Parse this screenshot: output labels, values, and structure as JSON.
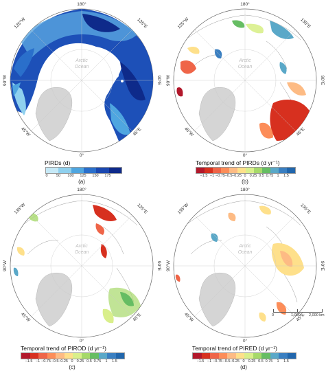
{
  "map_labels": {
    "lon_180": "180°",
    "lon_135w": "135°W",
    "lon_135e": "135°E",
    "lon_90w": "90°W",
    "lon_90e": "90°E",
    "lon_45w": "45°W",
    "lon_45e": "45°E",
    "lon_0": "0°",
    "ocean_line1": "Arctic",
    "ocean_line2": "Ocean"
  },
  "panels": [
    {
      "id": "a",
      "label": "(a)",
      "legend_title": "PIRDs (d)",
      "ticks": [
        "0",
        "50",
        "100",
        "125",
        "150",
        "175"
      ],
      "colors": [
        "#c6e9f7",
        "#8fd0ee",
        "#4fa6e0",
        "#2a6fcb",
        "#1a48b0",
        "#0e2a8a"
      ]
    },
    {
      "id": "b",
      "label": "(b)",
      "legend_title": "Temporal trend of PIRDs (d yr⁻¹)",
      "ticks": [
        "−1.5",
        "−1",
        "−0.75",
        "−0.5",
        "−0.25",
        "0",
        "0.25",
        "0.5",
        "0.75",
        "1",
        "1.5"
      ],
      "colors": [
        "#b2182b",
        "#d7301f",
        "#ef6548",
        "#fc8d59",
        "#fdbb84",
        "#fee08b",
        "#d9ef8b",
        "#a6d96a",
        "#66bd63",
        "#5aa8c8",
        "#3a7fc1",
        "#2166ac"
      ]
    },
    {
      "id": "c",
      "label": "(c)",
      "legend_title": "Temporal trend of PIROD (d yr⁻¹)",
      "ticks": [
        "−1.5",
        "−1",
        "−0.75",
        "−0.5",
        "−0.25",
        "0",
        "0.25",
        "0.5",
        "0.75",
        "1",
        "1.5"
      ],
      "colors": [
        "#b2182b",
        "#d7301f",
        "#ef6548",
        "#fc8d59",
        "#fdbb84",
        "#fee08b",
        "#d9ef8b",
        "#a6d96a",
        "#66bd63",
        "#5aa8c8",
        "#3a7fc1",
        "#2166ac"
      ]
    },
    {
      "id": "d",
      "label": "(d)",
      "legend_title": "Temporal trend of PIRED (d yr⁻¹)",
      "ticks": [
        "−1.5",
        "−1",
        "−0.75",
        "−0.5",
        "−0.25",
        "0",
        "0.25",
        "0.5",
        "0.75",
        "1",
        "1.5"
      ],
      "colors": [
        "#b2182b",
        "#d7301f",
        "#ef6548",
        "#fc8d59",
        "#fdbb84",
        "#fee08b",
        "#d9ef8b",
        "#a6d96a",
        "#66bd63",
        "#5aa8c8",
        "#3a7fc1",
        "#2166ac"
      ]
    }
  ],
  "scale_bar": {
    "ticks": [
      "0",
      "1,000",
      "2,000 km"
    ]
  },
  "colors": {
    "greenland": "#d5d5d5",
    "land_outline": "#9a9a9a",
    "graticule": "#c8c8c8"
  }
}
